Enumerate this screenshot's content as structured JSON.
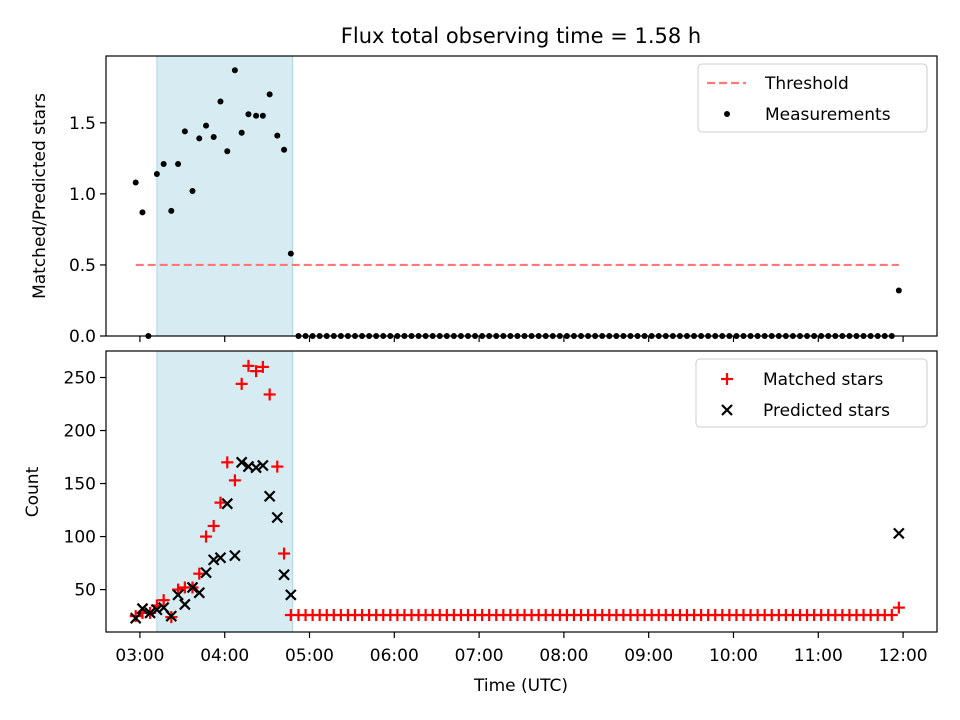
{
  "chart_data": [
    {
      "type": "scatter",
      "title": "Flux total observing time = 1.58 h",
      "xlabel": "",
      "ylabel": "Matched/Predicted stars",
      "xlim": [
        2.6,
        12.4
      ],
      "ylim": [
        0,
        1.97
      ],
      "yticks": [
        0.0,
        0.5,
        1.0,
        1.5
      ],
      "ytick_labels": [
        "0.0",
        "0.5",
        "1.0",
        "1.5"
      ],
      "shaded_span": [
        3.2,
        4.8
      ],
      "series": [
        {
          "name": "Threshold",
          "kind": "dashed-line",
          "color": "#ff7777",
          "x": [
            2.95,
            11.95
          ],
          "y": [
            0.5,
            0.5
          ]
        },
        {
          "name": "Measurements",
          "kind": "dot",
          "color": "#000000",
          "x": [
            2.95,
            3.03,
            3.1,
            3.2,
            3.28,
            3.37,
            3.45,
            3.53,
            3.62,
            3.7,
            3.78,
            3.87,
            3.95,
            4.03,
            4.12,
            4.2,
            4.28,
            4.37,
            4.45,
            4.53,
            4.62,
            4.7,
            4.78,
            11.95
          ],
          "y": [
            1.08,
            0.87,
            0.0,
            1.14,
            1.21,
            0.88,
            1.21,
            1.44,
            1.02,
            1.39,
            1.48,
            1.4,
            1.65,
            1.3,
            1.87,
            1.43,
            1.56,
            1.55,
            1.55,
            1.7,
            1.41,
            1.31,
            0.58,
            0.32
          ],
          "zero_fill": {
            "from": 4.87,
            "to": 11.87,
            "step": 0.0833,
            "y": 0
          }
        }
      ]
    },
    {
      "type": "scatter",
      "title": "",
      "xlabel": "Time (UTC)",
      "ylabel": "Count",
      "xlim": [
        2.6,
        12.4
      ],
      "ylim": [
        10,
        275
      ],
      "yticks": [
        50,
        100,
        150,
        200,
        250
      ],
      "ytick_labels": [
        "50",
        "100",
        "150",
        "200",
        "250"
      ],
      "xticks": [
        3,
        4,
        5,
        6,
        7,
        8,
        9,
        10,
        11,
        12
      ],
      "xtick_labels": [
        "03:00",
        "04:00",
        "05:00",
        "06:00",
        "07:00",
        "08:00",
        "09:00",
        "10:00",
        "11:00",
        "12:00"
      ],
      "shaded_span": [
        3.2,
        4.8
      ],
      "series": [
        {
          "name": "Matched stars",
          "kind": "plus",
          "color": "#ff0000",
          "x": [
            2.95,
            3.03,
            3.12,
            3.2,
            3.28,
            3.37,
            3.45,
            3.53,
            3.62,
            3.7,
            3.78,
            3.87,
            3.95,
            4.03,
            4.12,
            4.2,
            4.28,
            4.37,
            4.45,
            4.53,
            4.62,
            4.7,
            4.78,
            11.95
          ],
          "y": [
            25,
            28,
            28,
            35,
            40,
            24,
            50,
            52,
            52,
            65,
            100,
            110,
            132,
            170,
            153,
            244,
            261,
            256,
            260,
            234,
            166,
            84,
            26,
            33
          ],
          "fill": {
            "from": 4.87,
            "to": 11.87,
            "step": 0.0833,
            "y": 26
          }
        },
        {
          "name": "Predicted stars",
          "kind": "x",
          "color": "#000000",
          "x": [
            2.95,
            3.03,
            3.12,
            3.2,
            3.28,
            3.37,
            3.45,
            3.53,
            3.62,
            3.7,
            3.78,
            3.87,
            3.95,
            4.03,
            4.12,
            4.2,
            4.28,
            4.37,
            4.45,
            4.53,
            4.62,
            4.7,
            4.78,
            11.95
          ],
          "y": [
            23,
            32,
            28,
            31,
            33,
            25,
            45,
            36,
            52,
            47,
            66,
            78,
            80,
            131,
            82,
            170,
            166,
            165,
            167,
            138,
            118,
            64,
            45,
            103
          ]
        }
      ]
    }
  ]
}
